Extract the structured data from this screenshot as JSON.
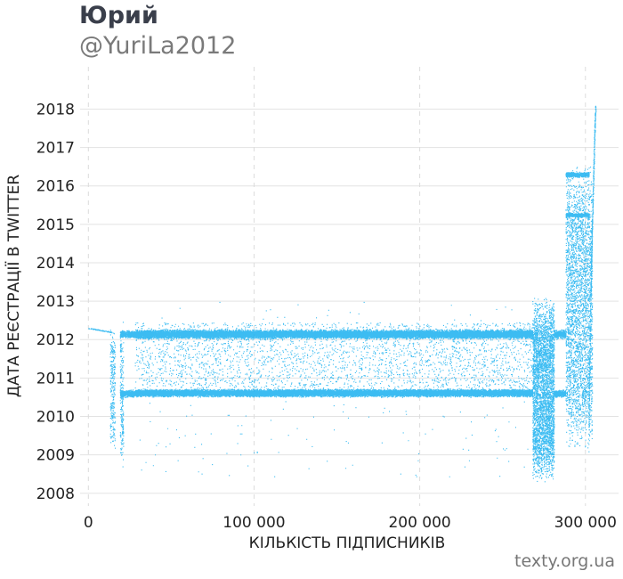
{
  "header": {
    "title": "Юрий",
    "subtitle": "@YuriLa2012"
  },
  "footer": {
    "source": "texty.org.ua"
  },
  "colors": {
    "points": "#1ab0f0",
    "grid": "#e3e3e3",
    "vgrid": "#dcdcdc",
    "text": "#222222"
  },
  "chart_data": {
    "type": "scatter",
    "xlabel": "КІЛЬКІСТЬ ПІДПИСНИКІВ",
    "ylabel": "ДАТА РЕЄСТРАЦІЇ В TWITTER",
    "xlim": [
      -5000,
      320000
    ],
    "ylim": [
      2007.67,
      2019.1
    ],
    "xticks": [
      0,
      100000,
      200000,
      300000
    ],
    "xtick_labels": [
      "0",
      "100 000",
      "200 000",
      "300 000"
    ],
    "yticks": [
      2008,
      2009,
      2010,
      2011,
      2012,
      2013,
      2014,
      2015,
      2016,
      2017,
      2018
    ],
    "ytick_labels": [
      "2008",
      "2009",
      "2010",
      "2011",
      "2012",
      "2013",
      "2014",
      "2015",
      "2016",
      "2017",
      "2018"
    ],
    "grid": "horizontal solid, vertical dashed",
    "note": "Each point is one follower: x = follower order index, y = date that follower registered on Twitter",
    "series": [
      {
        "segments": [
          {
            "x": [
              0,
              14000
            ],
            "y_center": 2012.25,
            "y_spread": 0.05,
            "density": "low",
            "pattern": "descending line"
          },
          {
            "x": [
              13000,
              16000
            ],
            "y": [
              2009.1,
              2012.3
            ],
            "density": "medium",
            "pattern": "column"
          },
          {
            "x": [
              19000,
              21000
            ],
            "y": [
              2008.6,
              2012.5
            ],
            "density": "medium",
            "pattern": "column"
          },
          {
            "x": [
              19000,
              28000
            ],
            "y_center": 2012.15,
            "y_spread": 0.12,
            "density": "high",
            "pattern": "band"
          },
          {
            "x": [
              19000,
              28000
            ],
            "y_center": 2010.6,
            "y_spread": 0.12,
            "density": "high",
            "pattern": "band"
          },
          {
            "x": [
              28000,
              268000
            ],
            "y_center": 2012.15,
            "y_spread": 0.14,
            "density": "very high",
            "pattern": "band"
          },
          {
            "x": [
              28000,
              268000
            ],
            "y_center": 2010.62,
            "y_spread": 0.12,
            "density": "very high",
            "pattern": "band"
          },
          {
            "x": [
              28000,
              268000
            ],
            "y": [
              2010.75,
              2012.45
            ],
            "density": "medium",
            "pattern": "spread"
          },
          {
            "x": [
              268000,
              281000
            ],
            "y": [
              2008.3,
              2013.1
            ],
            "density": "high",
            "pattern": "block"
          },
          {
            "x": [
              281000,
              288000
            ],
            "y_center": 2012.15,
            "y_spread": 0.14,
            "density": "high",
            "pattern": "band"
          },
          {
            "x": [
              281000,
              288000
            ],
            "y_center": 2010.6,
            "y_spread": 0.12,
            "density": "high",
            "pattern": "band"
          },
          {
            "x": [
              288000,
              304000
            ],
            "y": [
              2009.1,
              2016.6
            ],
            "density": "medium",
            "pattern": "block"
          },
          {
            "x": [
              288000,
              302000
            ],
            "y_center": 2016.3,
            "y_spread": 0.08,
            "density": "high",
            "pattern": "band"
          },
          {
            "x": [
              288000,
              302000
            ],
            "y_center": 2015.25,
            "y_spread": 0.06,
            "density": "high",
            "pattern": "band"
          },
          {
            "x": [
              302000,
              306000
            ],
            "y": [
              2009.0,
              2018.1
            ],
            "density": "low",
            "pattern": "ascending line"
          }
        ]
      }
    ]
  }
}
